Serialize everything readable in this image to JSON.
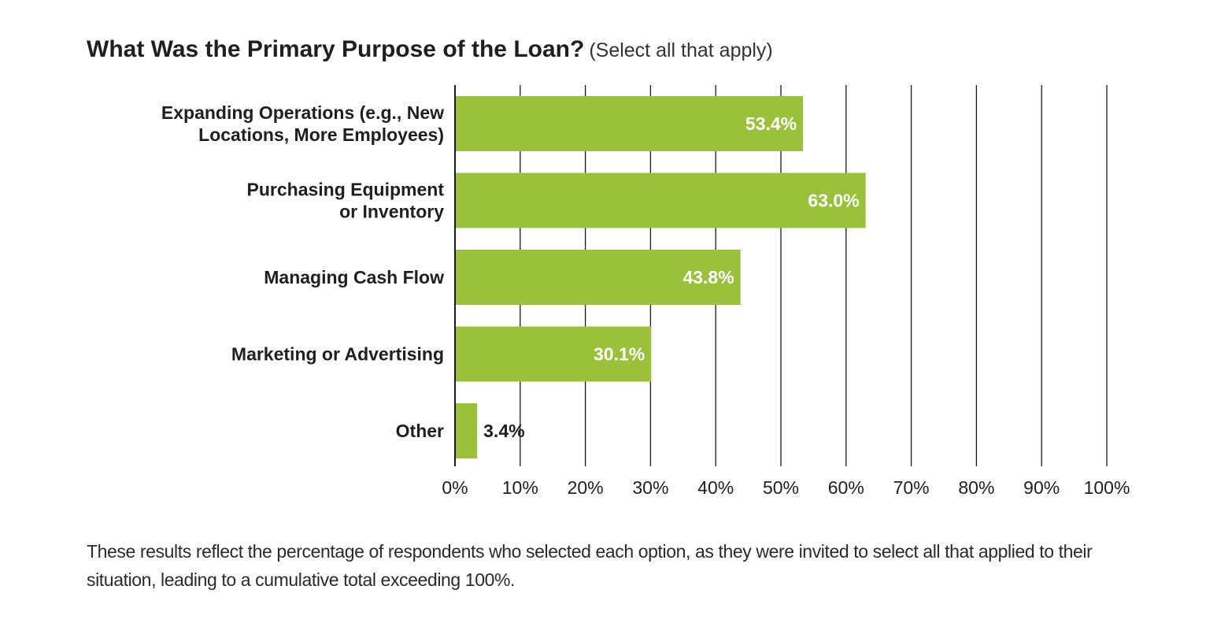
{
  "chart_data": {
    "type": "bar",
    "orientation": "horizontal",
    "title": "What Was the Primary Purpose of the Loan?",
    "subtitle": "(Select all that apply)",
    "categories": [
      [
        "Expanding Operations (e.g., New",
        "Locations, More Employees)"
      ],
      [
        "Purchasing Equipment",
        "or Inventory"
      ],
      [
        "Managing Cash Flow"
      ],
      [
        "Marketing or Advertising"
      ],
      [
        "Other"
      ]
    ],
    "values": [
      53.4,
      63.0,
      43.8,
      30.1,
      3.4
    ],
    "value_labels": [
      "53.4%",
      "63.0%",
      "43.8%",
      "30.1%",
      "3.4%"
    ],
    "x_ticks": [
      0,
      10,
      20,
      30,
      40,
      50,
      60,
      70,
      80,
      90,
      100
    ],
    "x_tick_labels": [
      "0%",
      "10%",
      "20%",
      "30%",
      "40%",
      "50%",
      "60%",
      "70%",
      "80%",
      "90%",
      "100%"
    ],
    "xlim": [
      0,
      100
    ],
    "grid": true,
    "bar_color": "#9bc03c",
    "grid_color": "#1a1a1a",
    "inside_label_color": "#ffffff",
    "outside_label_color": "#1f1f1f"
  },
  "footnote": "These results reflect the percentage of respondents who selected each option, as they were invited to select all that applied to their situation, leading to a cumulative total exceeding 100%."
}
